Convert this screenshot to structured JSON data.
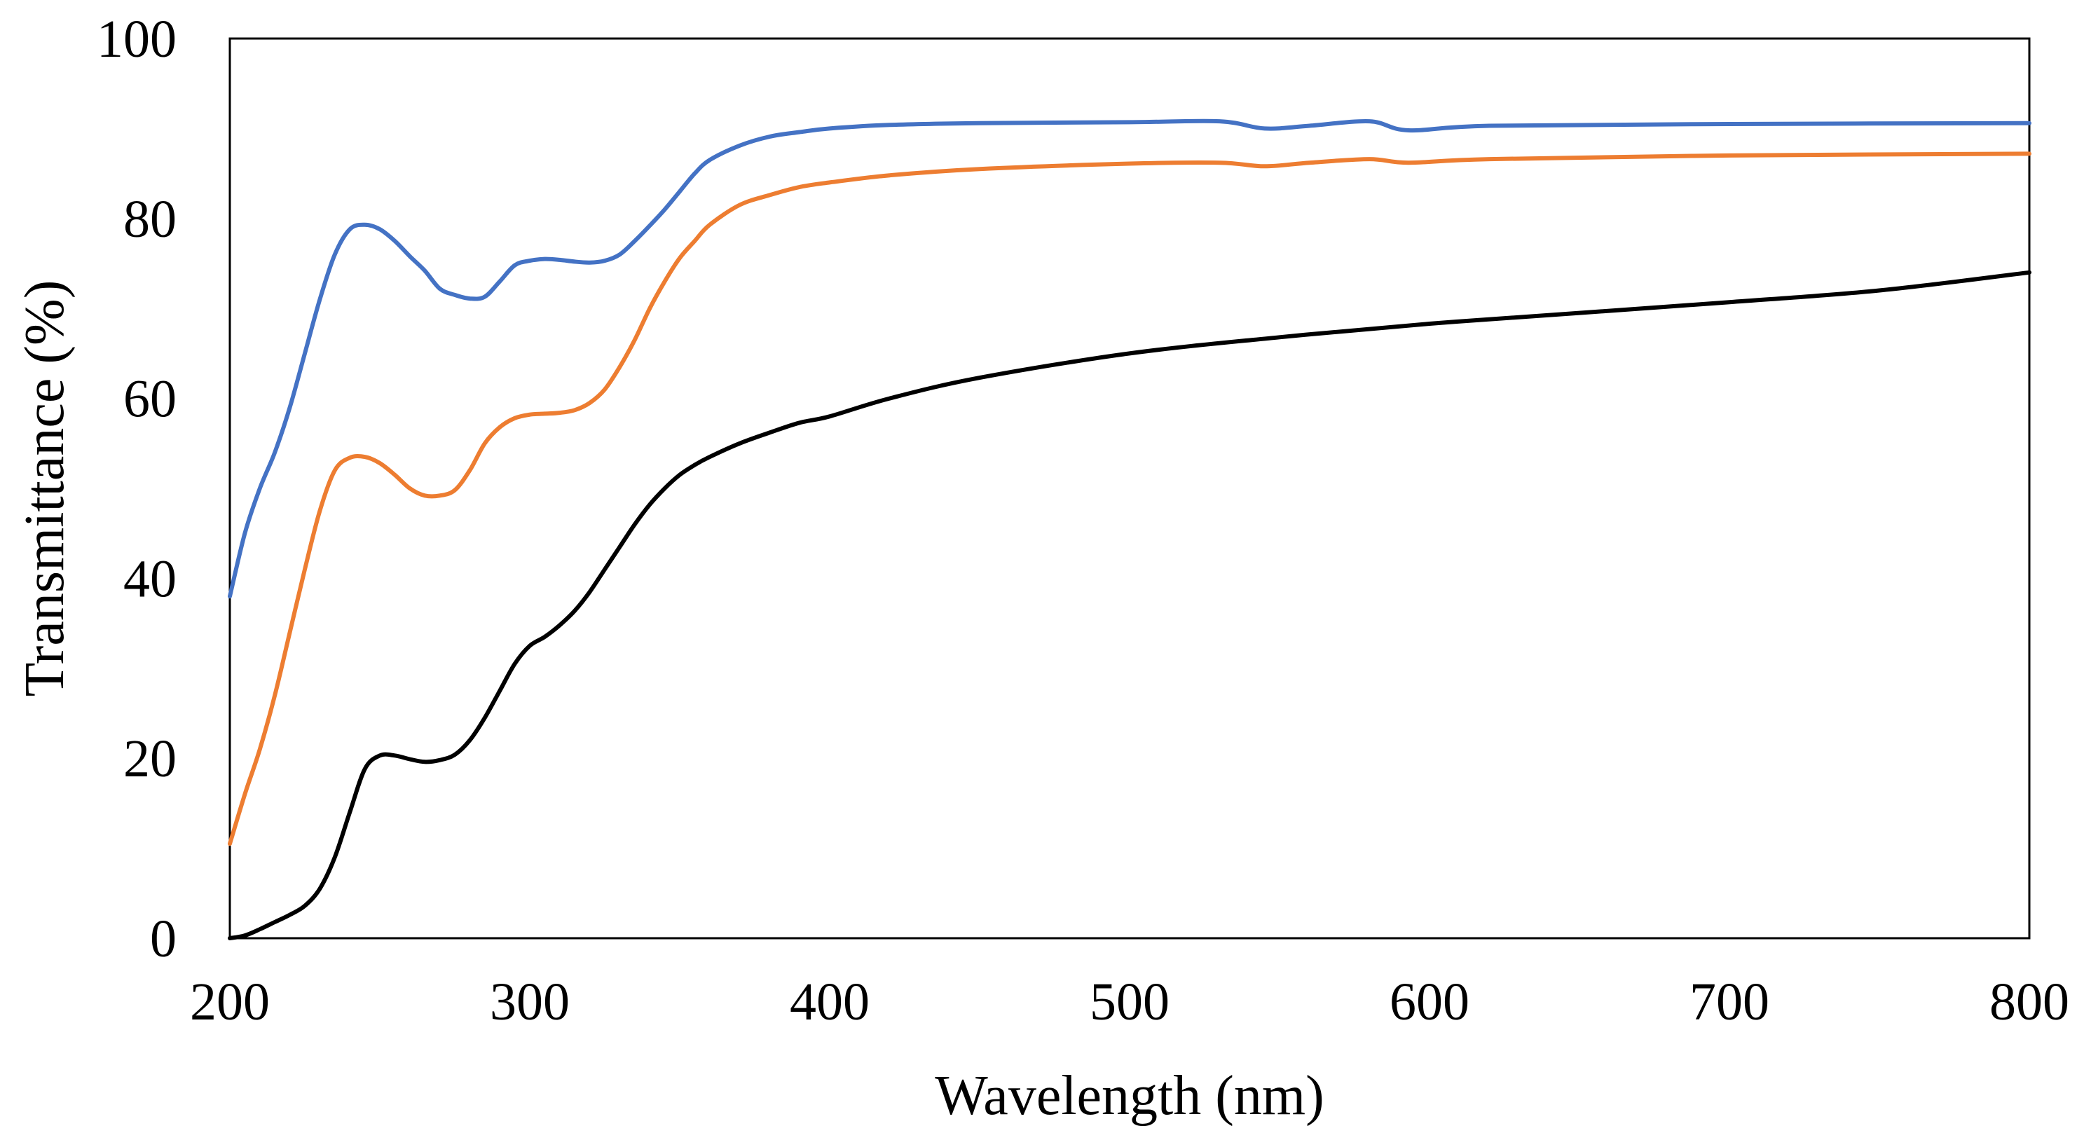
{
  "chart_data": {
    "type": "line",
    "title": "",
    "xlabel": "Wavelength (nm)",
    "ylabel": "Transmittance (%)",
    "xlim": [
      200,
      800
    ],
    "ylim": [
      0,
      100
    ],
    "xticks": [
      "200",
      "300",
      "400",
      "500",
      "600",
      "700",
      "800"
    ],
    "yticks": [
      "0",
      "20",
      "40",
      "60",
      "80",
      "100"
    ],
    "grid": false,
    "legend": "none",
    "series": [
      {
        "name": "blue",
        "color": "#4472C4",
        "x": [
          200,
          205,
          210,
          215,
          220,
          225,
          230,
          235,
          240,
          245,
          250,
          255,
          260,
          265,
          270,
          275,
          280,
          285,
          290,
          295,
          300,
          305,
          310,
          315,
          320,
          325,
          330,
          335,
          340,
          345,
          350,
          355,
          360,
          370,
          380,
          390,
          400,
          420,
          450,
          500,
          530,
          545,
          560,
          580,
          593,
          620,
          700,
          800
        ],
        "y": [
          38,
          45,
          50,
          54,
          59,
          65,
          71,
          76,
          78.8,
          79.3,
          78.8,
          77.5,
          75.8,
          74.2,
          72.2,
          71.5,
          71.1,
          71.3,
          73,
          74.8,
          75.3,
          75.5,
          75.4,
          75.2,
          75.1,
          75.3,
          76,
          77.5,
          79.2,
          81,
          83,
          85,
          86.5,
          88.1,
          89.1,
          89.6,
          90,
          90.4,
          90.6,
          90.7,
          90.8,
          90,
          90.3,
          90.8,
          89.8,
          90.3,
          90.5,
          90.6
        ]
      },
      {
        "name": "orange",
        "color": "#ED7D31",
        "x": [
          200,
          205,
          210,
          215,
          220,
          225,
          230,
          235,
          240,
          245,
          250,
          255,
          260,
          265,
          270,
          275,
          280,
          285,
          290,
          295,
          300,
          305,
          310,
          315,
          320,
          325,
          330,
          335,
          340,
          345,
          350,
          355,
          360,
          370,
          380,
          390,
          400,
          420,
          450,
          500,
          530,
          545,
          560,
          580,
          593,
          620,
          700,
          800
        ],
        "y": [
          10.5,
          16,
          21,
          27,
          34,
          41,
          47.5,
          52,
          53.4,
          53.5,
          52.8,
          51.5,
          50,
          49.2,
          49.2,
          49.8,
          52,
          55,
          56.8,
          57.8,
          58.2,
          58.3,
          58.4,
          58.7,
          59.5,
          61,
          63.5,
          66.5,
          70,
          73,
          75.6,
          77.5,
          79.3,
          81.5,
          82.6,
          83.5,
          84,
          84.8,
          85.5,
          86.1,
          86.2,
          85.8,
          86.2,
          86.6,
          86.2,
          86.6,
          87,
          87.2
        ]
      },
      {
        "name": "black",
        "color": "#000000",
        "x": [
          200,
          205,
          210,
          215,
          220,
          225,
          230,
          235,
          240,
          245,
          250,
          255,
          260,
          265,
          270,
          275,
          280,
          285,
          290,
          295,
          300,
          305,
          310,
          315,
          320,
          325,
          330,
          335,
          340,
          345,
          350,
          355,
          360,
          370,
          380,
          390,
          400,
          420,
          450,
          500,
          550,
          600,
          650,
          700,
          750,
          800
        ],
        "y": [
          0,
          0.3,
          1,
          1.8,
          2.6,
          3.6,
          5.5,
          9,
          14,
          18.8,
          20.3,
          20.3,
          19.9,
          19.6,
          19.8,
          20.4,
          22,
          24.5,
          27.5,
          30.5,
          32.5,
          33.5,
          34.8,
          36.4,
          38.5,
          41,
          43.5,
          46,
          48.2,
          50,
          51.5,
          52.6,
          53.5,
          55,
          56.2,
          57.3,
          58,
          60,
          62.3,
          65,
          66.8,
          68.3,
          69.5,
          70.7,
          72,
          74
        ]
      }
    ]
  }
}
